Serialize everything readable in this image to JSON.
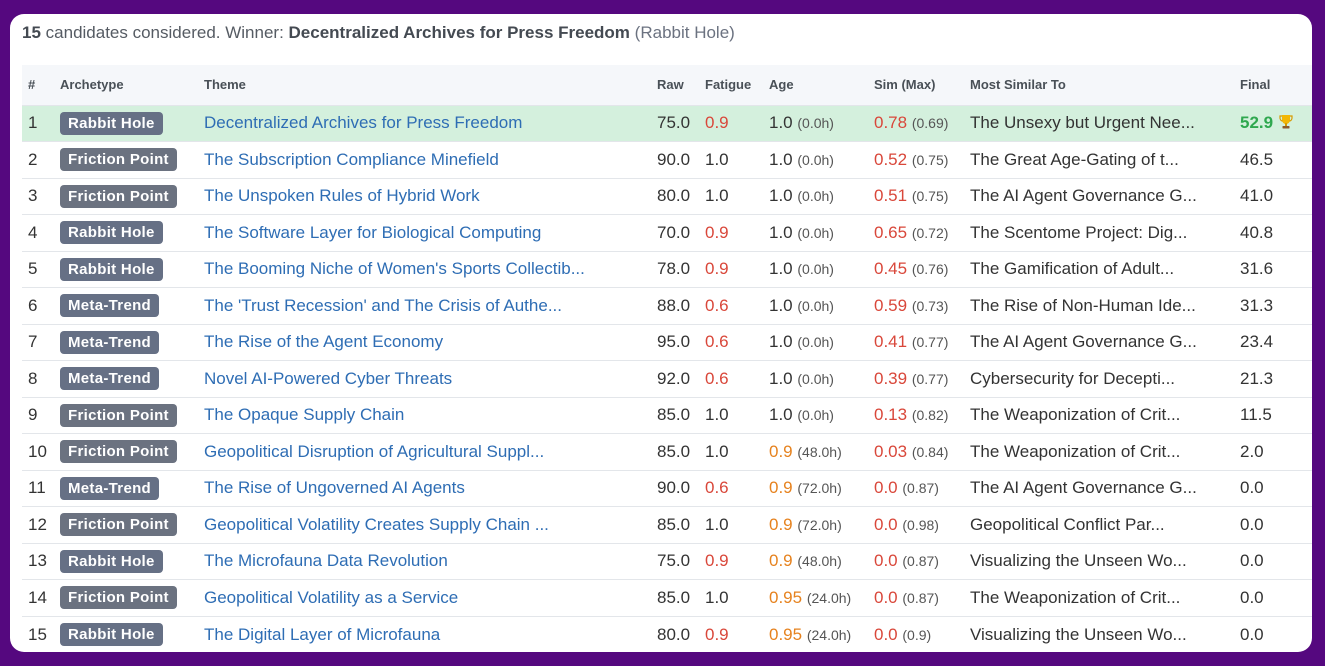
{
  "summary": {
    "count": "15",
    "text1": "candidates considered. Winner:",
    "winner": "Decentralized Archives for Press Freedom",
    "winner_archetype": "(Rabbit Hole)"
  },
  "headers": {
    "num": "#",
    "archetype": "Archetype",
    "theme": "Theme",
    "raw": "Raw",
    "fatigue": "Fatigue",
    "age": "Age",
    "sim": "Sim (Max)",
    "similar": "Most Similar To",
    "final": "Final"
  },
  "rows": [
    {
      "n": "1",
      "arch": "Rabbit Hole",
      "theme": "Decentralized Archives for Press Freedom",
      "raw": "75.0",
      "fatigue": "0.9",
      "fatigue_color": "red",
      "age": "1.0",
      "age_color": "dark",
      "age_sub": "(0.0h)",
      "sim": "0.78",
      "sim_max": "(0.69)",
      "similar": "The Unsexy but Urgent Nee...",
      "final": "52.9",
      "winner": true
    },
    {
      "n": "2",
      "arch": "Friction Point",
      "theme": "The Subscription Compliance Minefield",
      "raw": "90.0",
      "fatigue": "1.0",
      "fatigue_color": "dark",
      "age": "1.0",
      "age_color": "dark",
      "age_sub": "(0.0h)",
      "sim": "0.52",
      "sim_max": "(0.75)",
      "similar": "The Great Age-Gating of t...",
      "final": "46.5"
    },
    {
      "n": "3",
      "arch": "Friction Point",
      "theme": "The Unspoken Rules of Hybrid Work",
      "raw": "80.0",
      "fatigue": "1.0",
      "fatigue_color": "dark",
      "age": "1.0",
      "age_color": "dark",
      "age_sub": "(0.0h)",
      "sim": "0.51",
      "sim_max": "(0.75)",
      "similar": "The AI Agent Governance G...",
      "final": "41.0"
    },
    {
      "n": "4",
      "arch": "Rabbit Hole",
      "theme": "The Software Layer for Biological Computing",
      "raw": "70.0",
      "fatigue": "0.9",
      "fatigue_color": "red",
      "age": "1.0",
      "age_color": "dark",
      "age_sub": "(0.0h)",
      "sim": "0.65",
      "sim_max": "(0.72)",
      "similar": "The Scentome Project: Dig...",
      "final": "40.8"
    },
    {
      "n": "5",
      "arch": "Rabbit Hole",
      "theme": "The Booming Niche of Women's Sports Collectib...",
      "raw": "78.0",
      "fatigue": "0.9",
      "fatigue_color": "red",
      "age": "1.0",
      "age_color": "dark",
      "age_sub": "(0.0h)",
      "sim": "0.45",
      "sim_max": "(0.76)",
      "similar": "The Gamification of Adult...",
      "final": "31.6"
    },
    {
      "n": "6",
      "arch": "Meta-Trend",
      "theme": "The 'Trust Recession' and The Crisis of Authe...",
      "raw": "88.0",
      "fatigue": "0.6",
      "fatigue_color": "red",
      "age": "1.0",
      "age_color": "dark",
      "age_sub": "(0.0h)",
      "sim": "0.59",
      "sim_max": "(0.73)",
      "similar": "The Rise of Non-Human Ide...",
      "final": "31.3"
    },
    {
      "n": "7",
      "arch": "Meta-Trend",
      "theme": "The Rise of the Agent Economy",
      "raw": "95.0",
      "fatigue": "0.6",
      "fatigue_color": "red",
      "age": "1.0",
      "age_color": "dark",
      "age_sub": "(0.0h)",
      "sim": "0.41",
      "sim_max": "(0.77)",
      "similar": "The AI Agent Governance G...",
      "final": "23.4"
    },
    {
      "n": "8",
      "arch": "Meta-Trend",
      "theme": "Novel AI-Powered Cyber Threats",
      "raw": "92.0",
      "fatigue": "0.6",
      "fatigue_color": "red",
      "age": "1.0",
      "age_color": "dark",
      "age_sub": "(0.0h)",
      "sim": "0.39",
      "sim_max": "(0.77)",
      "similar": "Cybersecurity for Decepti...",
      "final": "21.3"
    },
    {
      "n": "9",
      "arch": "Friction Point",
      "theme": "The Opaque Supply Chain",
      "raw": "85.0",
      "fatigue": "1.0",
      "fatigue_color": "dark",
      "age": "1.0",
      "age_color": "dark",
      "age_sub": "(0.0h)",
      "sim": "0.13",
      "sim_max": "(0.82)",
      "similar": "The Weaponization of Crit...",
      "final": "11.5"
    },
    {
      "n": "10",
      "arch": "Friction Point",
      "theme": "Geopolitical Disruption of Agricultural Suppl...",
      "raw": "85.0",
      "fatigue": "1.0",
      "fatigue_color": "dark",
      "age": "0.9",
      "age_color": "orange",
      "age_sub": "(48.0h)",
      "sim": "0.03",
      "sim_max": "(0.84)",
      "similar": "The Weaponization of Crit...",
      "final": "2.0"
    },
    {
      "n": "11",
      "arch": "Meta-Trend",
      "theme": "The Rise of Ungoverned AI Agents",
      "raw": "90.0",
      "fatigue": "0.6",
      "fatigue_color": "red",
      "age": "0.9",
      "age_color": "orange",
      "age_sub": "(72.0h)",
      "sim": "0.0",
      "sim_max": "(0.87)",
      "similar": "The AI Agent Governance G...",
      "final": "0.0"
    },
    {
      "n": "12",
      "arch": "Friction Point",
      "theme": "Geopolitical Volatility Creates Supply Chain ...",
      "raw": "85.0",
      "fatigue": "1.0",
      "fatigue_color": "dark",
      "age": "0.9",
      "age_color": "orange",
      "age_sub": "(72.0h)",
      "sim": "0.0",
      "sim_max": "(0.98)",
      "similar": "Geopolitical Conflict Par...",
      "final": "0.0"
    },
    {
      "n": "13",
      "arch": "Rabbit Hole",
      "theme": "The Microfauna Data Revolution",
      "raw": "75.0",
      "fatigue": "0.9",
      "fatigue_color": "red",
      "age": "0.9",
      "age_color": "orange",
      "age_sub": "(48.0h)",
      "sim": "0.0",
      "sim_max": "(0.87)",
      "similar": "Visualizing the Unseen Wo...",
      "final": "0.0"
    },
    {
      "n": "14",
      "arch": "Friction Point",
      "theme": "Geopolitical Volatility as a Service",
      "raw": "85.0",
      "fatigue": "1.0",
      "fatigue_color": "dark",
      "age": "0.95",
      "age_color": "orange",
      "age_sub": "(24.0h)",
      "sim": "0.0",
      "sim_max": "(0.87)",
      "similar": "The Weaponization of Crit...",
      "final": "0.0"
    },
    {
      "n": "15",
      "arch": "Rabbit Hole",
      "theme": "The Digital Layer of Microfauna",
      "raw": "80.0",
      "fatigue": "0.9",
      "fatigue_color": "red",
      "age": "0.95",
      "age_color": "orange",
      "age_sub": "(24.0h)",
      "sim": "0.0",
      "sim_max": "(0.9)",
      "similar": "Visualizing the Unseen Wo...",
      "final": "0.0"
    }
  ]
}
